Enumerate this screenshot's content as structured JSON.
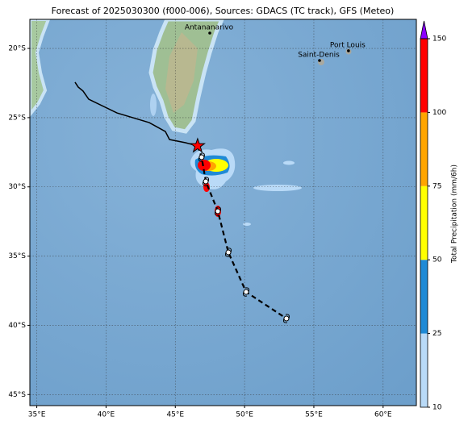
{
  "chart_data": {
    "type": "map",
    "title": "Forecast of 2025030300 (f000-006), Sources: GDACS (TC track), GFS (Meteo)",
    "xlim": [
      34.5,
      62.4
    ],
    "ylim": [
      -45.8,
      -17.9
    ],
    "xticks": [
      {
        "value": 35,
        "label": "35°E"
      },
      {
        "value": 40,
        "label": "40°E"
      },
      {
        "value": 45,
        "label": "45°E"
      },
      {
        "value": 50,
        "label": "50°E"
      },
      {
        "value": 55,
        "label": "55°E"
      },
      {
        "value": 60,
        "label": "60°E"
      }
    ],
    "yticks": [
      {
        "value": -20,
        "label": "20°S"
      },
      {
        "value": -25,
        "label": "25°S"
      },
      {
        "value": -30,
        "label": "30°S"
      },
      {
        "value": -35,
        "label": "35°S"
      },
      {
        "value": -40,
        "label": "40°S"
      },
      {
        "value": -45,
        "label": "45°S"
      }
    ],
    "grid": true,
    "cities": [
      {
        "name": "Antananarivo",
        "lon": 47.49,
        "lat": -18.89
      },
      {
        "name": "Port Louis",
        "lon": 57.5,
        "lat": -20.17
      },
      {
        "name": "Saint-Denis",
        "lon": 55.41,
        "lat": -20.87
      }
    ],
    "past_track": {
      "color": "#000000",
      "lon": [
        37.76,
        37.99,
        38.34,
        38.75,
        40.79,
        43.12,
        44.28,
        44.58,
        45.74,
        46.61
      ],
      "lat": [
        -22.44,
        -22.79,
        -23.08,
        -23.67,
        -24.66,
        -25.36,
        -26.0,
        -26.58,
        -26.81,
        -27.04
      ]
    },
    "forecast_track": {
      "color": "#000000",
      "lon": [
        46.61,
        46.9,
        47.2,
        48.07,
        48.83,
        50.11,
        53.02
      ],
      "lat": [
        -27.04,
        -27.86,
        -29.61,
        -31.76,
        -34.73,
        -37.59,
        -39.51
      ]
    },
    "current_position_color": "#ff0000",
    "colorbar": {
      "label": "Total Precipitation (mm/6h)",
      "ticks": [
        10,
        25,
        50,
        75,
        100,
        150
      ],
      "colors": [
        "#b9daf7",
        "#1f8ad6",
        "#ffff00",
        "#ffa500",
        "#ff0000"
      ],
      "extend_color": "#8b00ff"
    }
  }
}
